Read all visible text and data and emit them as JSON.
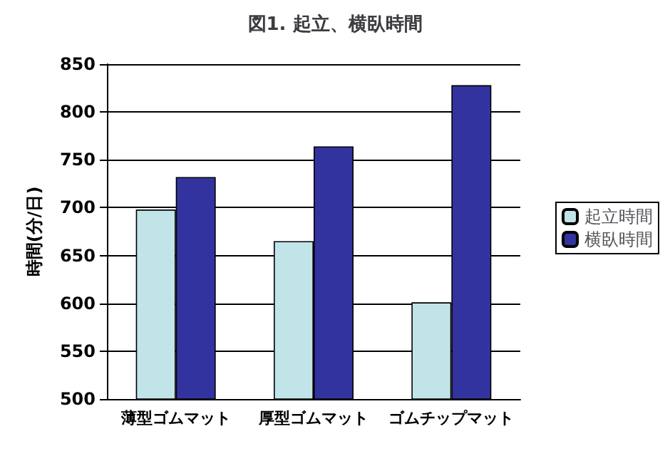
{
  "chart_data": {
    "type": "bar",
    "title": "図1. 起立、横臥時間",
    "ylabel": "時間(分/日)",
    "categories": [
      "薄型ゴムマット",
      "厚型ゴムマット",
      "ゴムチップマット"
    ],
    "series": [
      {
        "name": "起立時間",
        "color": "#c0e4e8",
        "values": [
          698,
          665,
          601
        ]
      },
      {
        "name": "横臥時間",
        "color": "#3333a0",
        "values": [
          732,
          764,
          828
        ]
      }
    ],
    "ylim": [
      500,
      850
    ],
    "yticks": [
      500,
      550,
      600,
      650,
      700,
      750,
      800,
      850
    ],
    "grid": "y",
    "legend": "right"
  }
}
